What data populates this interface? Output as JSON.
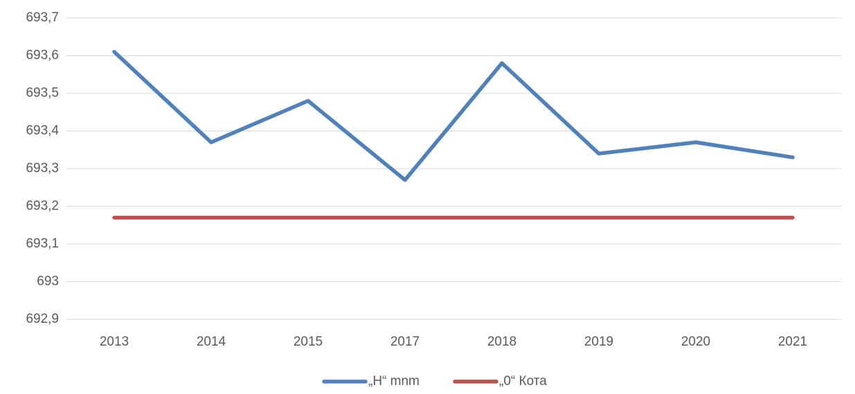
{
  "chart_data": {
    "type": "line",
    "categories": [
      "2013",
      "2014",
      "2015",
      "2017",
      "2018",
      "2019",
      "2020",
      "2021"
    ],
    "series": [
      {
        "name": "„H“ mnm",
        "color": "#4f81bd",
        "values": [
          693.61,
          693.37,
          693.48,
          693.27,
          693.58,
          693.34,
          693.37,
          693.33
        ]
      },
      {
        "name": "„0“ Кота",
        "color": "#c0504d",
        "values": [
          693.17,
          693.17,
          693.17,
          693.17,
          693.17,
          693.17,
          693.17,
          693.17
        ]
      }
    ],
    "ylim": [
      692.9,
      693.7
    ],
    "yticks": [
      {
        "value": 692.9,
        "label": "692,9"
      },
      693,
      {
        "value": 693.1,
        "label": "693,1"
      },
      {
        "value": 693.2,
        "label": "693,2"
      },
      {
        "value": 693.3,
        "label": "693,3"
      },
      {
        "value": 693.4,
        "label": "693,4"
      },
      {
        "value": 693.5,
        "label": "693,5"
      },
      {
        "value": 693.6,
        "label": "693,6"
      },
      {
        "value": 693.7,
        "label": "693,7"
      }
    ],
    "grid": true,
    "legend": "bottom"
  }
}
